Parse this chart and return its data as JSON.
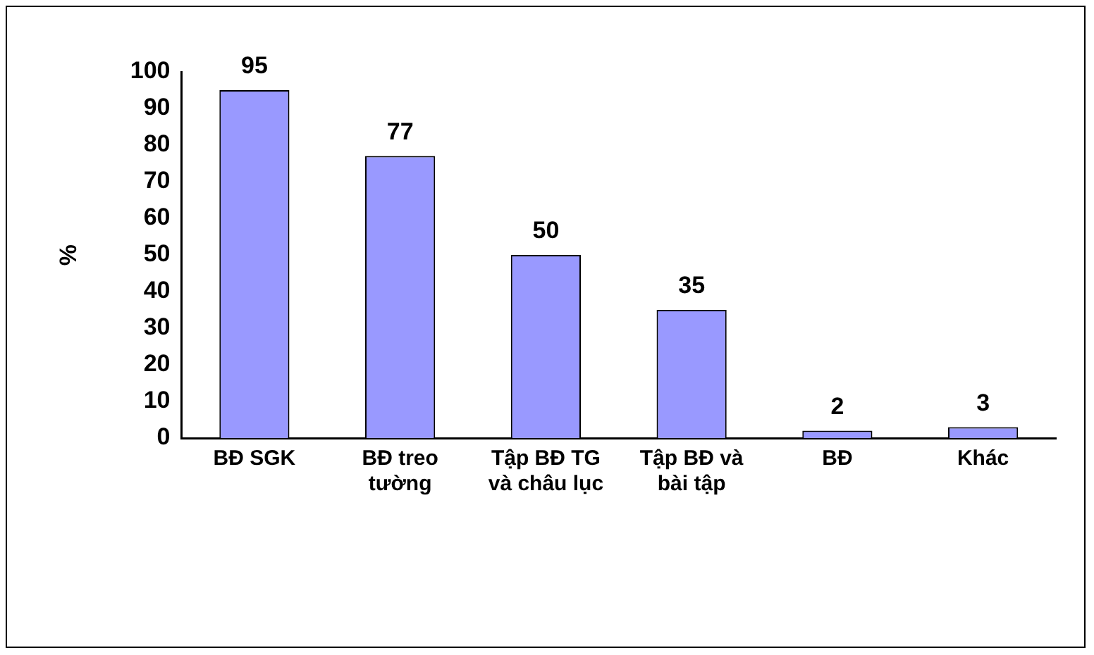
{
  "chart_data": {
    "type": "bar",
    "ylabel": "%",
    "categories": [
      "BĐ SGK",
      "BĐ treo tường",
      "Tập BĐ TG và châu lục",
      "Tập BĐ và bài tập",
      "BĐ",
      "Khác"
    ],
    "values": [
      95,
      77,
      50,
      35,
      2,
      3
    ],
    "color": "#9999ff",
    "ylim": [
      0,
      100
    ],
    "yticks": [
      0,
      10,
      20,
      30,
      40,
      50,
      60,
      70,
      80,
      90,
      100
    ],
    "grid": false,
    "legend": false,
    "data_labels": true
  }
}
